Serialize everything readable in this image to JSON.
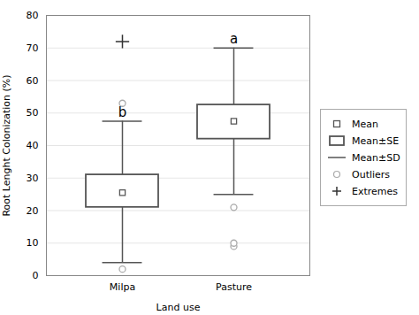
{
  "chart_data": {
    "type": "box",
    "xlabel": "Land use",
    "ylabel": "Root Lenght Colonization (%)",
    "categories": [
      "Milpa",
      "Pasture"
    ],
    "series": [
      {
        "name": "Mean",
        "type": "point",
        "marker": "square",
        "color": "#555555",
        "values": [
          25.5,
          47.5
        ]
      },
      {
        "name": "Mean±SE",
        "type": "box",
        "color": "#555555",
        "lower": [
          21,
          42
        ],
        "upper": [
          31,
          52.5
        ]
      },
      {
        "name": "Mean±SD",
        "type": "whisker",
        "color": "#555555",
        "lower": [
          4,
          25
        ],
        "upper": [
          47.5,
          70
        ]
      },
      {
        "name": "Outliers",
        "type": "point",
        "marker": "circle",
        "color": "#aaaaaa",
        "values": [
          [
            2,
            53
          ],
          [
            9,
            10,
            21
          ]
        ]
      },
      {
        "name": "Extremes",
        "type": "point",
        "marker": "plus",
        "color": "#333333",
        "values": [
          [
            72
          ],
          []
        ]
      }
    ],
    "annotations": [
      "b",
      "a"
    ],
    "ylim": [
      0,
      80
    ],
    "yticks": [
      0,
      10,
      20,
      30,
      40,
      50,
      60,
      70,
      80
    ],
    "grid": true,
    "legend": "right"
  }
}
